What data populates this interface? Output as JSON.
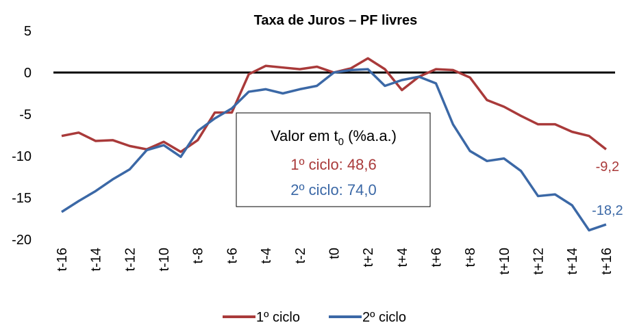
{
  "chart_data": {
    "type": "line",
    "title": "Taxa de Juros – PF livres",
    "categories": [
      "t-16",
      null,
      "t-14",
      null,
      "t-12",
      null,
      "t-10",
      null,
      "t-8",
      null,
      "t-6",
      null,
      "t-4",
      null,
      "t-2",
      null,
      "t0",
      null,
      "t+2",
      null,
      "t+4",
      null,
      "t+6",
      null,
      "t+8",
      null,
      "t+10",
      null,
      "t+12",
      null,
      "t+14",
      null,
      "t+16"
    ],
    "series": [
      {
        "name": "1º ciclo",
        "color": "#a93a3a",
        "values": [
          -7.6,
          -7.2,
          -8.2,
          -8.1,
          -8.8,
          -9.2,
          -8.3,
          -9.5,
          -8.1,
          -4.8,
          -4.8,
          -0.2,
          0.8,
          0.6,
          0.4,
          0.7,
          0,
          0.5,
          1.7,
          0.4,
          -2.1,
          -0.5,
          0.4,
          0.3,
          -0.6,
          -3.3,
          -4.1,
          -5.2,
          -6.2,
          -6.2,
          -7.1,
          -7.6,
          -9.2
        ],
        "value_labels": [
          null,
          null,
          null,
          null,
          null,
          null,
          null,
          null,
          null,
          null,
          null,
          null,
          null,
          null,
          null,
          null,
          null,
          null,
          null,
          null,
          null,
          null,
          null,
          null,
          null,
          null,
          null,
          null,
          null,
          null,
          null,
          null,
          "-9,2"
        ]
      },
      {
        "name": "2º ciclo",
        "color": "#3b68a6",
        "values": [
          -16.7,
          -15.4,
          -14.2,
          -12.8,
          -11.6,
          -9.3,
          -8.7,
          -10.1,
          -7.0,
          -5.5,
          -4.3,
          -2.3,
          -2.0,
          -2.5,
          -2.0,
          -1.6,
          0,
          0.3,
          0.4,
          -1.6,
          -0.9,
          -0.5,
          -1.3,
          -6.2,
          -9.4,
          -10.6,
          -10.3,
          -11.8,
          -14.8,
          -14.6,
          -15.9,
          -18.9,
          -18.2
        ],
        "value_labels": [
          null,
          null,
          null,
          null,
          null,
          null,
          null,
          null,
          null,
          null,
          null,
          null,
          null,
          null,
          null,
          null,
          null,
          null,
          null,
          null,
          null,
          null,
          null,
          null,
          null,
          null,
          null,
          null,
          null,
          null,
          null,
          null,
          "-18,2"
        ]
      }
    ],
    "ylim": [
      -20,
      5
    ],
    "yticks": [
      5,
      0,
      -5,
      -10,
      -15,
      -20
    ],
    "legend": "bottom",
    "annotation": {
      "heading": [
        "Valor em t",
        "0",
        " (%a.a.)"
      ],
      "lines": [
        {
          "text": "1º ciclo: 48,6",
          "color": "#a93a3a"
        },
        {
          "text": "2º ciclo: 74,0",
          "color": "#3b68a6"
        }
      ]
    }
  }
}
